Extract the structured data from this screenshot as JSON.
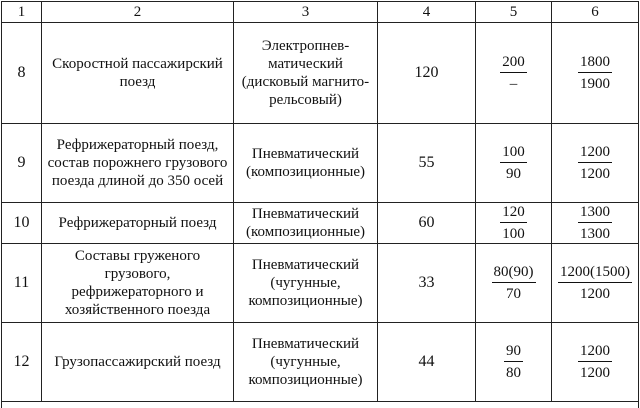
{
  "table": {
    "headers": [
      "1",
      "2",
      "3",
      "4",
      "5",
      "6"
    ],
    "rows": [
      {
        "num": "8",
        "train": "Скоростной пассажирский поезд",
        "brake": "Электропнев-матический (дисковый магнито-рельсовый)",
        "value": "120",
        "c5_top": "200",
        "c5_bot": "–",
        "c6_top": "1800",
        "c6_bot": "1900"
      },
      {
        "num": "9",
        "train": "Рефрижераторный поезд, состав порожнего грузового поезда длиной до 350 осей",
        "brake": "Пневматический (композиционные)",
        "value": "55",
        "c5_top": "100",
        "c5_bot": "90",
        "c6_top": "1200",
        "c6_bot": "1200"
      },
      {
        "num": "10",
        "train": "Рефрижераторный поезд",
        "brake": "Пневматический (композиционные)",
        "value": "60",
        "c5_top": "120",
        "c5_bot": "100",
        "c6_top": "1300",
        "c6_bot": "1300"
      },
      {
        "num": "11",
        "train": "Составы груженого грузового, рефрижераторного и хозяйственного поезда",
        "brake": "Пневматический (чугунные, композиционные)",
        "value": "33",
        "c5_top": "80(90)",
        "c5_bot": "70",
        "c6_top": "1200(1500)",
        "c6_bot": "1200"
      },
      {
        "num": "12",
        "train": "Грузопассажирский поезд",
        "brake": "Пневматический (чугунные, композиционные)",
        "value": "44",
        "c5_top": "90",
        "c5_bot": "80",
        "c6_top": "1200",
        "c6_bot": "1200"
      }
    ]
  }
}
